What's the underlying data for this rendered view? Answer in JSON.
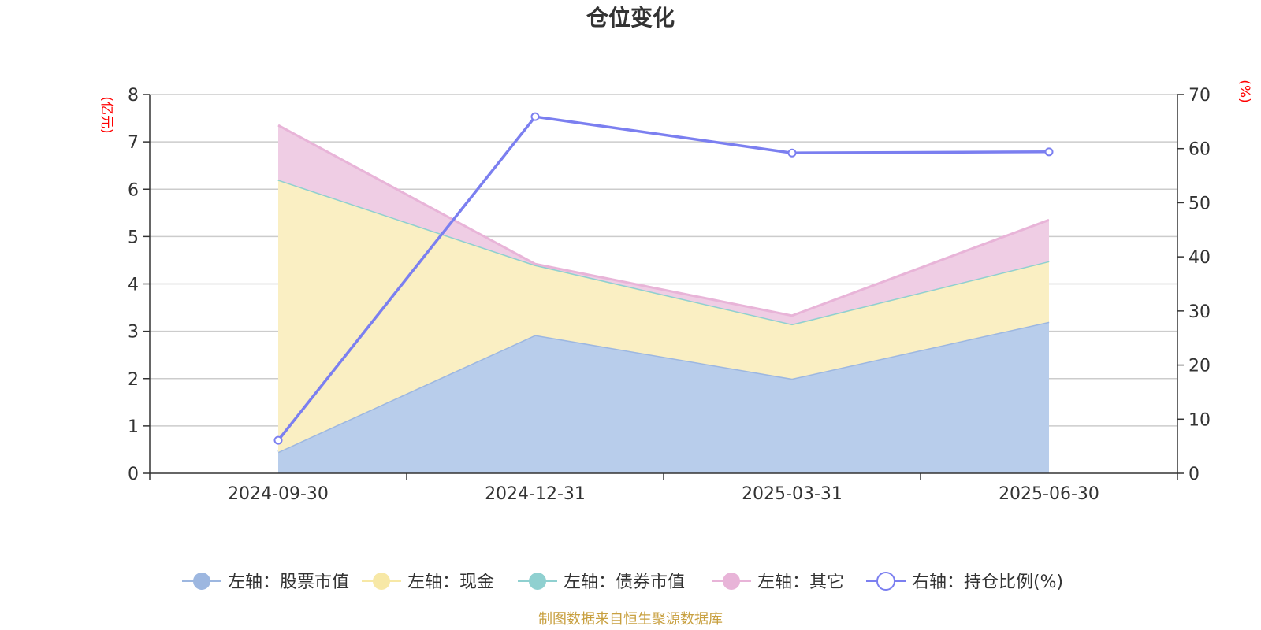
{
  "chart_data": {
    "type": "area",
    "title": "仓位变化",
    "categories": [
      "2024-09-30",
      "2024-12-31",
      "2025-03-31",
      "2025-06-30"
    ],
    "left_axis": {
      "unit": "(亿元)",
      "ylim": [
        0,
        8
      ],
      "ticks": [
        0,
        1,
        2,
        3,
        4,
        5,
        6,
        7,
        8
      ]
    },
    "right_axis": {
      "unit": "(%)",
      "ylim": [
        0,
        70
      ],
      "ticks": [
        0,
        10,
        20,
        30,
        40,
        50,
        60,
        70
      ]
    },
    "stacked": true,
    "grid": true,
    "legend_position": "bottom",
    "series": [
      {
        "name": "左轴：股票市值",
        "axis": "left",
        "kind": "area",
        "color": "#9db7e0",
        "fill": "#b8cdeb",
        "values": [
          0.45,
          2.92,
          2.0,
          3.2
        ]
      },
      {
        "name": "左轴：现金",
        "axis": "left",
        "kind": "area",
        "color": "#f7e8a6",
        "fill": "#faefc3",
        "values": [
          5.75,
          1.48,
          1.15,
          1.28
        ]
      },
      {
        "name": "左轴：债券市值",
        "axis": "left",
        "kind": "area",
        "color": "#8fd0d0",
        "fill": "#b3e0e0",
        "values": [
          0,
          0,
          0,
          0
        ]
      },
      {
        "name": "左轴：其它",
        "axis": "left",
        "kind": "area",
        "color": "#e8b4d8",
        "fill": "#efcde4",
        "values": [
          1.15,
          0.02,
          0.18,
          0.87
        ]
      },
      {
        "name": "右轴：持仓比例(%)",
        "axis": "right",
        "kind": "line",
        "color": "#7b7ff0",
        "values": [
          6.1,
          65.9,
          59.2,
          59.4
        ]
      }
    ],
    "source": "制图数据来自恒生聚源数据库"
  }
}
